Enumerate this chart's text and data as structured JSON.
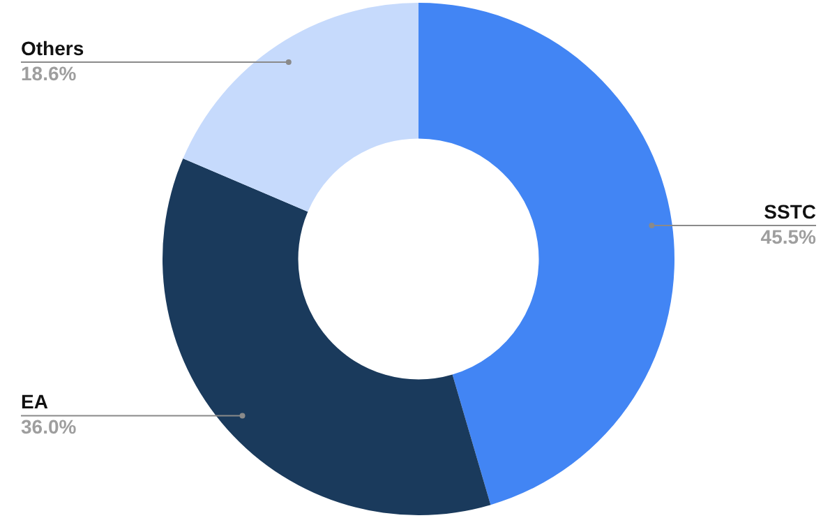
{
  "chart_data": {
    "type": "donut",
    "categories": [
      "SSTC",
      "EA",
      "Others"
    ],
    "values": [
      45.5,
      36.0,
      18.6
    ],
    "colors": [
      "#4285f4",
      "#1a3a5c",
      "#c6dafc"
    ],
    "value_labels": [
      "45.5%",
      "36.0%",
      "18.6%"
    ],
    "legend": false
  }
}
